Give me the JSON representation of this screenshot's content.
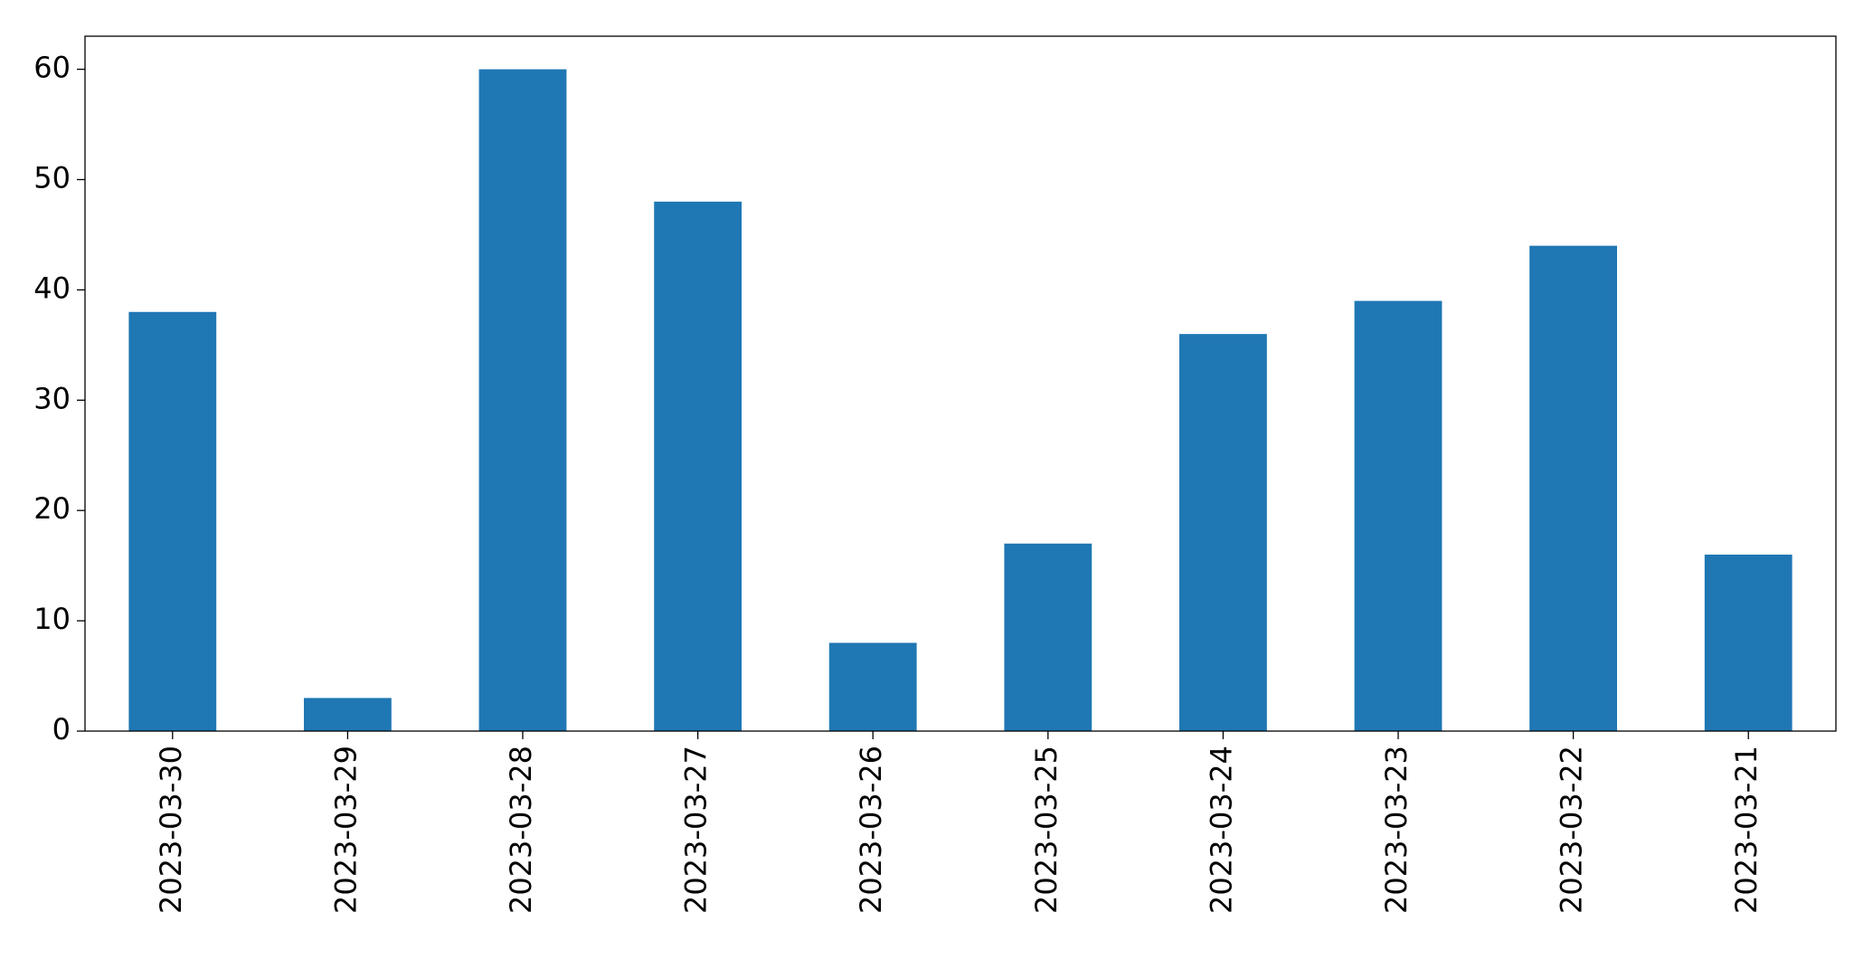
{
  "chart_data": {
    "type": "bar",
    "categories": [
      "2023-03-30",
      "2023-03-29",
      "2023-03-28",
      "2023-03-27",
      "2023-03-26",
      "2023-03-25",
      "2023-03-24",
      "2023-03-23",
      "2023-03-22",
      "2023-03-21"
    ],
    "values": [
      38,
      3,
      60,
      48,
      8,
      17,
      36,
      39,
      44,
      16
    ],
    "color": "#1f77b4",
    "ylim": [
      0,
      63
    ],
    "yticks": [
      0,
      10,
      20,
      30,
      40,
      50,
      60
    ],
    "grid": false
  }
}
